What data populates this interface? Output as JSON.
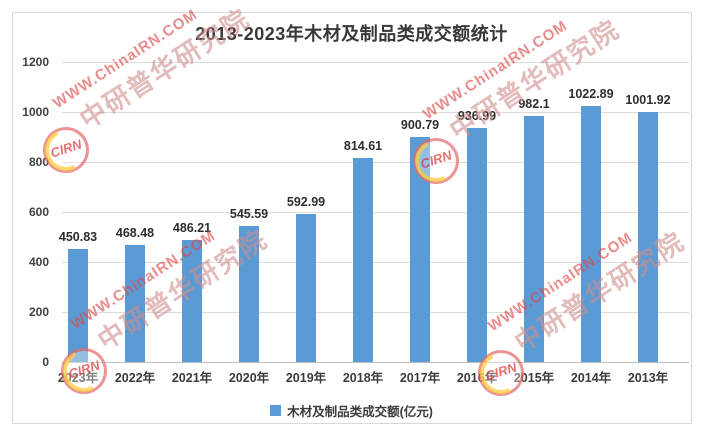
{
  "chart_data": {
    "type": "bar",
    "title": "2013-2023年木材及制品类成交额统计",
    "categories": [
      "2023年",
      "2022年",
      "2021年",
      "2020年",
      "2019年",
      "2018年",
      "2017年",
      "2016年",
      "2015年",
      "2014年",
      "2013年"
    ],
    "values": [
      450.83,
      468.48,
      486.21,
      545.59,
      592.99,
      814.61,
      900.79,
      936.99,
      982.1,
      1022.89,
      1001.92
    ],
    "value_labels": [
      "450.83",
      "468.48",
      "486.21",
      "545.59",
      "592.99",
      "814.61",
      "900.79",
      "936.99",
      "982.1",
      "1022.89",
      "1001.92"
    ],
    "legend": "木材及制品类成交额(亿元)",
    "xlabel": "",
    "ylabel": "",
    "ylim": [
      0,
      1200
    ],
    "yticks": [
      0,
      200,
      400,
      600,
      800,
      1000,
      1200
    ],
    "grid": true,
    "legend_position": "bottom",
    "bar_color": "#5B9BD5"
  },
  "watermark": {
    "line1": "WWW.ChinaIRN.COM",
    "line2": "中研普华研究院",
    "logo_text": "CIRN",
    "red": "#DB3E3E",
    "tan": "#CF8E8E",
    "yellow": "#FFCD3C"
  }
}
